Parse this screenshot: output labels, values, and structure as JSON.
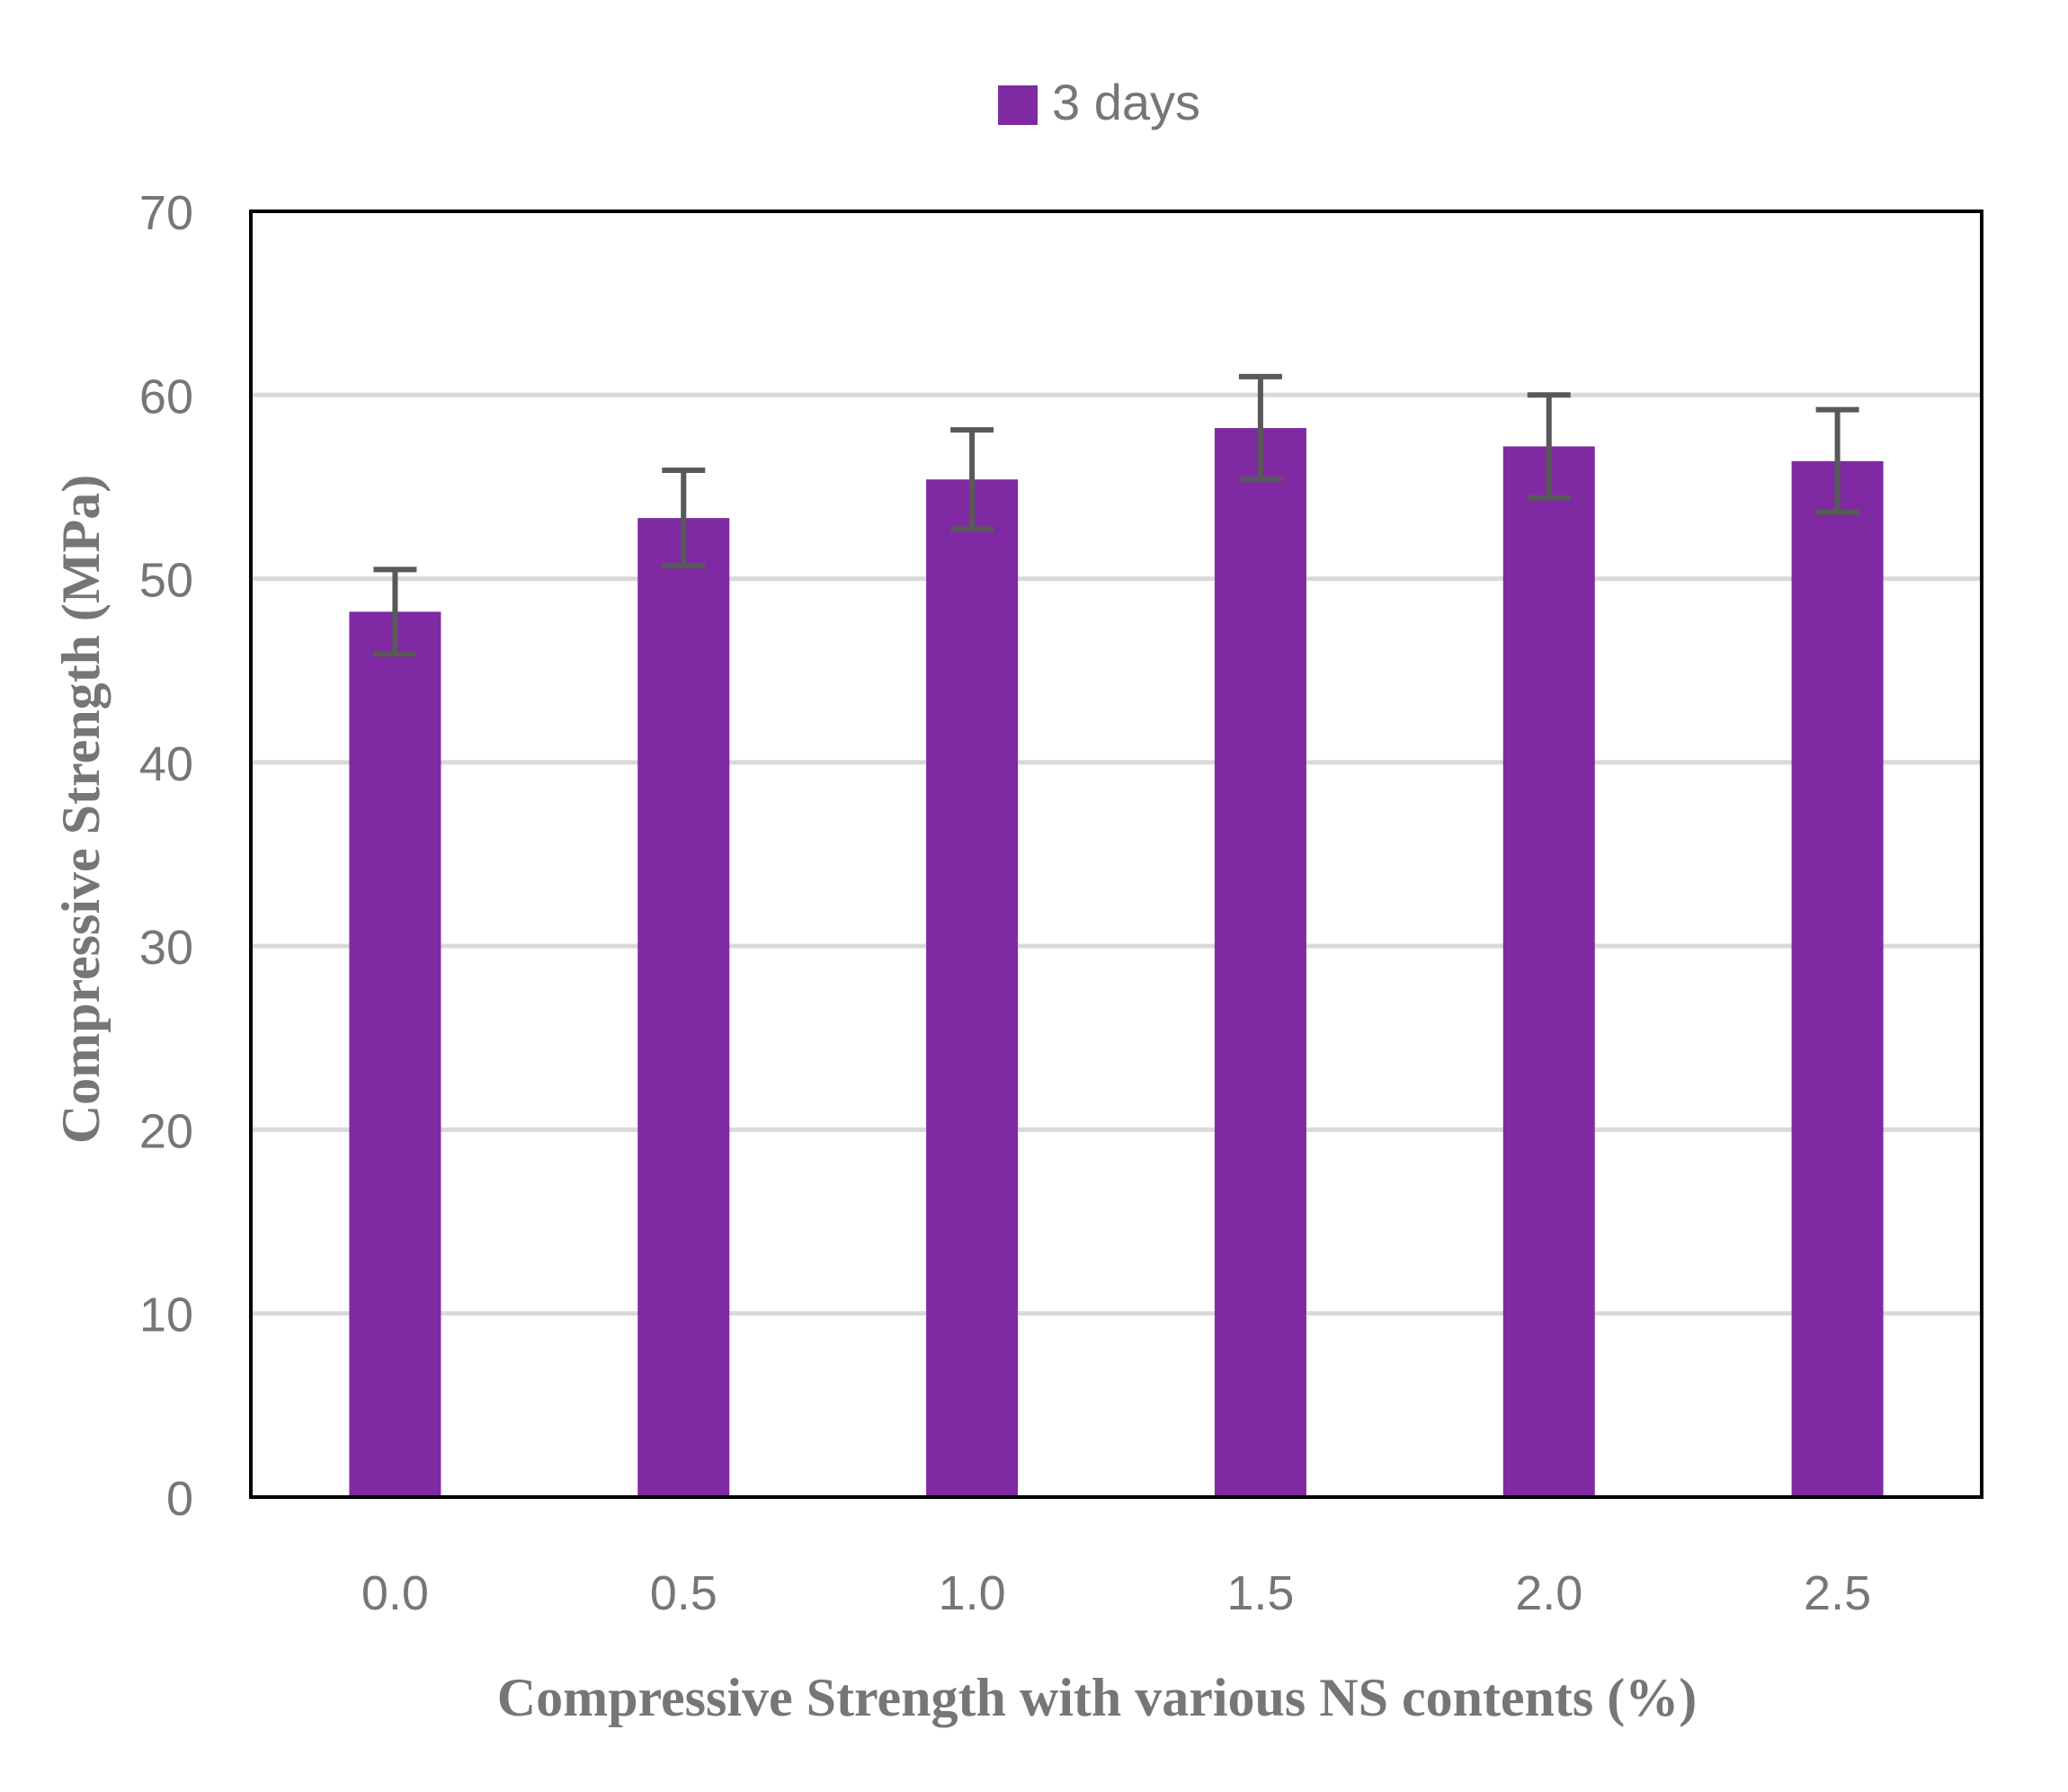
{
  "chart_data": {
    "type": "bar",
    "categories": [
      "0.0",
      "0.5",
      "1.0",
      "1.5",
      "2.0",
      "2.5"
    ],
    "series": [
      {
        "name": "3 days",
        "values": [
          48.2,
          53.3,
          55.4,
          58.2,
          57.2,
          56.4
        ],
        "error": [
          2.3,
          2.6,
          2.7,
          2.8,
          2.8,
          2.8
        ]
      }
    ],
    "xlabel": "Compressive Strength with various NS contents (%)",
    "ylabel": "Compressive Strength (MPa)",
    "ylim": [
      0,
      70
    ],
    "yticks": [
      "0",
      "10",
      "20",
      "30",
      "40",
      "50",
      "60",
      "70"
    ],
    "grid": true,
    "legend_position": "top-center",
    "colors": {
      "bar": "#7f2aa2",
      "error_bar": "#595959",
      "grid": "#d9d9d9",
      "axis_text": "#767676",
      "frame": "#000000"
    }
  }
}
